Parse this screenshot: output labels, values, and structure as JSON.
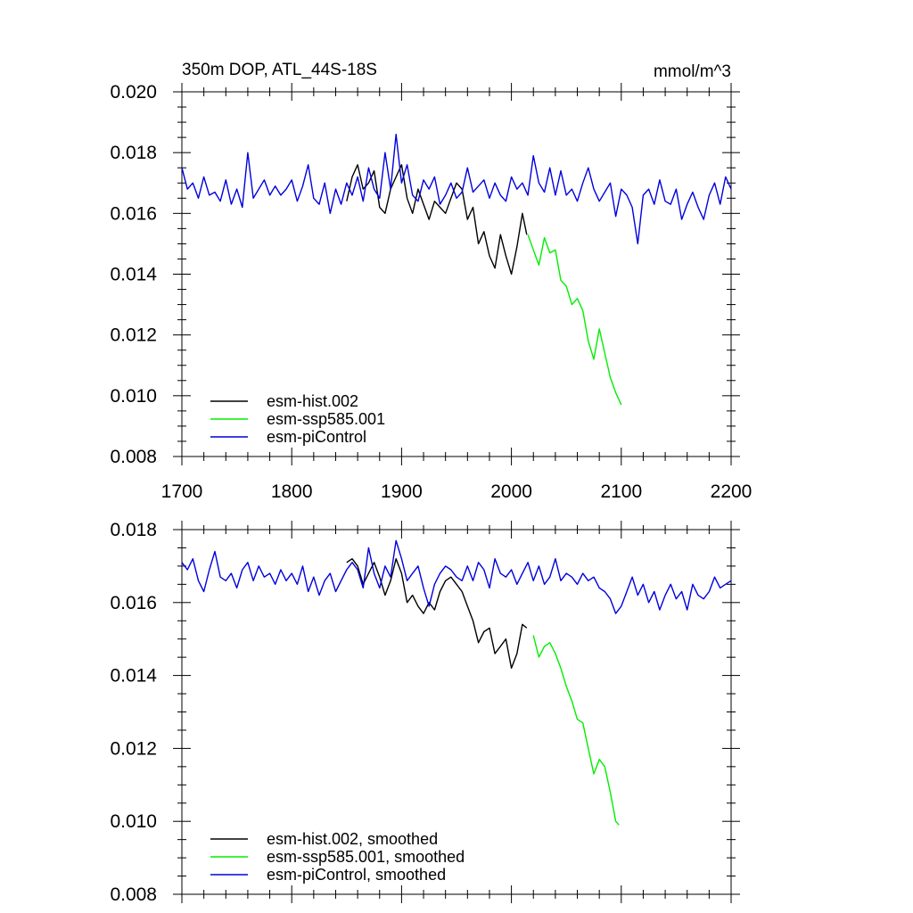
{
  "figure": {
    "title_left": "350m DOP, ATL_44S-18S",
    "title_right": "mmol/m^3"
  },
  "colors": {
    "hist": "#000000",
    "ssp": "#00ee00",
    "picontrol": "#0000dd"
  },
  "chart_data": [
    {
      "type": "line",
      "panel": "raw",
      "title": "350m DOP, ATL_44S-18S",
      "units": "mmol/m^3",
      "xlim": [
        1700,
        2200
      ],
      "ylim": [
        0.008,
        0.02
      ],
      "xticks": [
        "1700",
        "1800",
        "1900",
        "2000",
        "2100",
        "2200"
      ],
      "yticks": [
        "0.008",
        "0.010",
        "0.012",
        "0.014",
        "0.016",
        "0.018",
        "0.020"
      ],
      "legend": "bottom-left",
      "series": [
        {
          "name": "esm-hist.002",
          "color": "#000000",
          "x": [
            1850,
            1855,
            1860,
            1865,
            1870,
            1875,
            1880,
            1885,
            1890,
            1895,
            1900,
            1905,
            1910,
            1915,
            1920,
            1925,
            1930,
            1935,
            1940,
            1945,
            1950,
            1955,
            1960,
            1965,
            1970,
            1975,
            1980,
            1985,
            1990,
            1995,
            2000,
            2005,
            2010,
            2014
          ],
          "y": [
            0.0164,
            0.0172,
            0.0176,
            0.0168,
            0.017,
            0.0174,
            0.0162,
            0.016,
            0.0168,
            0.0172,
            0.0176,
            0.0165,
            0.016,
            0.0168,
            0.0163,
            0.0158,
            0.0164,
            0.0162,
            0.016,
            0.0165,
            0.017,
            0.0168,
            0.0158,
            0.0162,
            0.015,
            0.0154,
            0.0146,
            0.0142,
            0.0153,
            0.0146,
            0.014,
            0.0149,
            0.016,
            0.0153
          ]
        },
        {
          "name": "esm-ssp585.001",
          "color": "#00ee00",
          "x": [
            2015,
            2020,
            2025,
            2030,
            2035,
            2040,
            2045,
            2050,
            2055,
            2060,
            2065,
            2070,
            2075,
            2080,
            2085,
            2090,
            2095,
            2100
          ],
          "y": [
            0.0153,
            0.0148,
            0.0143,
            0.0152,
            0.0147,
            0.0148,
            0.0138,
            0.0136,
            0.013,
            0.0132,
            0.0128,
            0.0118,
            0.0112,
            0.0122,
            0.0114,
            0.0106,
            0.0101,
            0.0097
          ]
        },
        {
          "name": "esm-piControl",
          "color": "#0000dd",
          "x": [
            1700,
            1705,
            1710,
            1715,
            1720,
            1725,
            1730,
            1735,
            1740,
            1745,
            1750,
            1755,
            1760,
            1765,
            1770,
            1775,
            1780,
            1785,
            1790,
            1795,
            1800,
            1805,
            1810,
            1815,
            1820,
            1825,
            1830,
            1835,
            1840,
            1845,
            1850,
            1855,
            1860,
            1865,
            1870,
            1875,
            1880,
            1885,
            1890,
            1895,
            1900,
            1905,
            1910,
            1915,
            1920,
            1925,
            1930,
            1935,
            1940,
            1945,
            1950,
            1955,
            1960,
            1965,
            1970,
            1975,
            1980,
            1985,
            1990,
            1995,
            2000,
            2005,
            2010,
            2015,
            2020,
            2025,
            2030,
            2035,
            2040,
            2045,
            2050,
            2055,
            2060,
            2065,
            2070,
            2075,
            2080,
            2085,
            2090,
            2095,
            2100,
            2105,
            2110,
            2115,
            2120,
            2125,
            2130,
            2135,
            2140,
            2145,
            2150,
            2155,
            2160,
            2165,
            2170,
            2175,
            2180,
            2185,
            2190,
            2195,
            2200
          ],
          "y": [
            0.0175,
            0.0168,
            0.017,
            0.0165,
            0.0172,
            0.0166,
            0.0167,
            0.0164,
            0.0171,
            0.0163,
            0.0168,
            0.0162,
            0.018,
            0.0165,
            0.0168,
            0.0171,
            0.0166,
            0.0169,
            0.0166,
            0.0168,
            0.0171,
            0.0164,
            0.0169,
            0.0176,
            0.0165,
            0.0163,
            0.017,
            0.016,
            0.0168,
            0.0163,
            0.017,
            0.0166,
            0.0172,
            0.0164,
            0.0175,
            0.0168,
            0.0165,
            0.018,
            0.0168,
            0.0186,
            0.017,
            0.0176,
            0.0166,
            0.0164,
            0.0171,
            0.0168,
            0.0172,
            0.0163,
            0.0166,
            0.017,
            0.0165,
            0.0167,
            0.0175,
            0.0167,
            0.0169,
            0.0171,
            0.0165,
            0.017,
            0.0166,
            0.0164,
            0.0172,
            0.0168,
            0.017,
            0.0166,
            0.0179,
            0.017,
            0.0167,
            0.0175,
            0.0166,
            0.0174,
            0.0166,
            0.0168,
            0.0164,
            0.017,
            0.0175,
            0.0168,
            0.0164,
            0.0167,
            0.017,
            0.0159,
            0.0168,
            0.0166,
            0.0162,
            0.015,
            0.0166,
            0.0168,
            0.0163,
            0.0171,
            0.0164,
            0.0163,
            0.0168,
            0.0158,
            0.0163,
            0.0167,
            0.0162,
            0.0158,
            0.0166,
            0.017,
            0.0163,
            0.0172,
            0.0168
          ]
        }
      ]
    },
    {
      "type": "line",
      "panel": "smoothed",
      "xlim": [
        1700,
        2200
      ],
      "ylim": [
        0.008,
        0.018
      ],
      "yticks": [
        "0.008",
        "0.010",
        "0.012",
        "0.014",
        "0.016",
        "0.018"
      ],
      "legend": "bottom-left",
      "series": [
        {
          "name": "esm-hist.002, smoothed",
          "color": "#000000",
          "x": [
            1850,
            1855,
            1860,
            1865,
            1870,
            1875,
            1880,
            1885,
            1890,
            1895,
            1900,
            1905,
            1910,
            1915,
            1920,
            1925,
            1930,
            1935,
            1940,
            1945,
            1950,
            1955,
            1960,
            1965,
            1970,
            1975,
            1980,
            1985,
            1990,
            1995,
            2000,
            2005,
            2010,
            2014
          ],
          "y": [
            0.0171,
            0.0172,
            0.017,
            0.0165,
            0.0168,
            0.0171,
            0.0167,
            0.0162,
            0.0166,
            0.0172,
            0.0168,
            0.016,
            0.0162,
            0.0159,
            0.0157,
            0.016,
            0.0158,
            0.0163,
            0.0166,
            0.0167,
            0.0165,
            0.0163,
            0.0159,
            0.0155,
            0.0149,
            0.0152,
            0.0153,
            0.0146,
            0.0148,
            0.015,
            0.0142,
            0.0146,
            0.0154,
            0.0153
          ]
        },
        {
          "name": "esm-ssp585.001, smoothed",
          "color": "#00ee00",
          "x": [
            2020,
            2025,
            2030,
            2035,
            2040,
            2045,
            2050,
            2055,
            2060,
            2065,
            2070,
            2075,
            2080,
            2085,
            2090,
            2095,
            2098
          ],
          "y": [
            0.0151,
            0.0145,
            0.0148,
            0.0149,
            0.0146,
            0.0142,
            0.0137,
            0.0133,
            0.0128,
            0.0127,
            0.012,
            0.0113,
            0.0117,
            0.0115,
            0.0108,
            0.01,
            0.0099
          ]
        },
        {
          "name": "esm-piControl, smoothed",
          "color": "#0000dd",
          "x": [
            1700,
            1705,
            1710,
            1715,
            1720,
            1725,
            1730,
            1735,
            1740,
            1745,
            1750,
            1755,
            1760,
            1765,
            1770,
            1775,
            1780,
            1785,
            1790,
            1795,
            1800,
            1805,
            1810,
            1815,
            1820,
            1825,
            1830,
            1835,
            1840,
            1845,
            1850,
            1855,
            1860,
            1865,
            1870,
            1875,
            1880,
            1885,
            1890,
            1895,
            1900,
            1905,
            1910,
            1915,
            1920,
            1925,
            1930,
            1935,
            1940,
            1945,
            1950,
            1955,
            1960,
            1965,
            1970,
            1975,
            1980,
            1985,
            1990,
            1995,
            2000,
            2005,
            2010,
            2015,
            2020,
            2025,
            2030,
            2035,
            2040,
            2045,
            2050,
            2055,
            2060,
            2065,
            2070,
            2075,
            2080,
            2085,
            2090,
            2095,
            2100,
            2105,
            2110,
            2115,
            2120,
            2125,
            2130,
            2135,
            2140,
            2145,
            2150,
            2155,
            2160,
            2165,
            2170,
            2175,
            2180,
            2185,
            2190,
            2195,
            2200
          ],
          "y": [
            0.0171,
            0.0169,
            0.0172,
            0.0166,
            0.0163,
            0.0169,
            0.0174,
            0.0167,
            0.0166,
            0.0168,
            0.0164,
            0.0169,
            0.0171,
            0.0166,
            0.017,
            0.0167,
            0.0168,
            0.0165,
            0.0169,
            0.0166,
            0.0168,
            0.0165,
            0.017,
            0.0163,
            0.0167,
            0.0162,
            0.0166,
            0.0168,
            0.0163,
            0.0166,
            0.0169,
            0.0171,
            0.0169,
            0.0164,
            0.0175,
            0.0168,
            0.0164,
            0.017,
            0.0167,
            0.0177,
            0.0172,
            0.0166,
            0.0168,
            0.017,
            0.0164,
            0.0159,
            0.0165,
            0.0168,
            0.017,
            0.0169,
            0.0167,
            0.0166,
            0.017,
            0.0166,
            0.0171,
            0.0169,
            0.0164,
            0.0172,
            0.0168,
            0.0167,
            0.0169,
            0.0165,
            0.0168,
            0.0171,
            0.0166,
            0.017,
            0.0165,
            0.0167,
            0.0172,
            0.0166,
            0.0168,
            0.0167,
            0.0165,
            0.0168,
            0.0166,
            0.0167,
            0.0164,
            0.0163,
            0.0161,
            0.0157,
            0.0159,
            0.0163,
            0.0167,
            0.0162,
            0.0165,
            0.016,
            0.0163,
            0.0158,
            0.0162,
            0.0165,
            0.0161,
            0.0163,
            0.0158,
            0.0165,
            0.0162,
            0.0161,
            0.0163,
            0.0167,
            0.0164,
            0.0165,
            0.0166
          ]
        }
      ]
    }
  ]
}
